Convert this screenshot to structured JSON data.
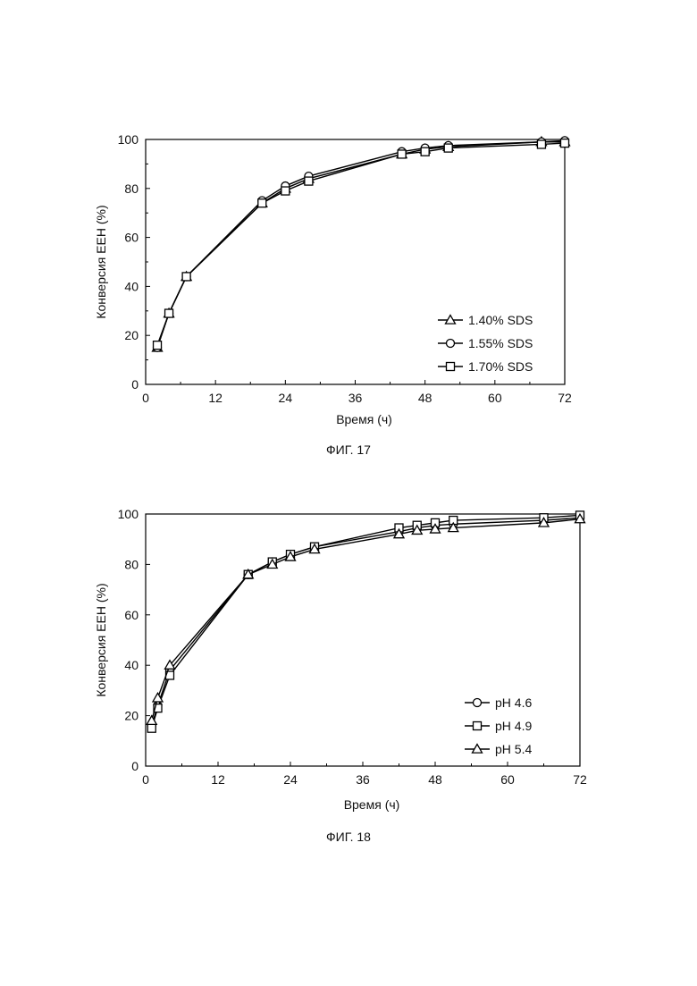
{
  "charts": [
    {
      "id": "fig17",
      "caption": "ФИГ. 17",
      "chart_data": {
        "type": "line",
        "xlabel": "Время (ч)",
        "ylabel": "Конверсия ЕЕН (%)",
        "xlim": [
          0,
          72
        ],
        "ylim": [
          0,
          100
        ],
        "xticks": [
          0,
          12,
          24,
          36,
          48,
          60,
          72
        ],
        "yticks": [
          0,
          20,
          40,
          60,
          80,
          100
        ],
        "grid": false,
        "legend_position": "bottom-right",
        "series": [
          {
            "name": "1.40% SDS",
            "marker": "triangle",
            "x": [
              2,
              4,
              7,
              20,
              24,
              28,
              44,
              48,
              52,
              68,
              72
            ],
            "y": [
              15,
              29,
              44,
              74,
              80,
              84,
              94,
              96,
              97,
              99,
              99
            ]
          },
          {
            "name": "1.55% SDS",
            "marker": "circle",
            "x": [
              2,
              4,
              7,
              20,
              24,
              28,
              44,
              48,
              52,
              68,
              72
            ],
            "y": [
              15,
              29,
              44,
              75,
              81,
              85,
              95,
              96.5,
              97.5,
              99,
              99.5
            ]
          },
          {
            "name": "1.70% SDS",
            "marker": "square",
            "x": [
              2,
              4,
              7,
              20,
              24,
              28,
              44,
              48,
              52,
              68,
              72
            ],
            "y": [
              16,
              29,
              44,
              74,
              79,
              83,
              94,
              95,
              96.5,
              98,
              98.5
            ]
          }
        ]
      }
    },
    {
      "id": "fig18",
      "caption": "ФИГ. 18",
      "chart_data": {
        "type": "line",
        "xlabel": "Время (ч)",
        "ylabel": "Конверсия ЕЕН (%)",
        "xlim": [
          0,
          72
        ],
        "ylim": [
          0,
          100
        ],
        "xticks": [
          0,
          12,
          24,
          36,
          48,
          60,
          72
        ],
        "yticks": [
          0,
          20,
          40,
          60,
          80,
          100
        ],
        "grid": false,
        "legend_position": "bottom-right",
        "series": [
          {
            "name": "pH 4.6",
            "marker": "circle",
            "x": [
              1,
              2,
              4,
              17,
              21,
              24,
              28,
              42,
              45,
              48,
              51,
              66,
              72
            ],
            "y": [
              16,
              24,
              38,
              76,
              81,
              84,
              87,
              93,
              94.5,
              95.5,
              96,
              97.5,
              98.5
            ]
          },
          {
            "name": "pH 4.9",
            "marker": "square",
            "x": [
              1,
              2,
              4,
              17,
              21,
              24,
              28,
              42,
              45,
              48,
              51,
              66,
              72
            ],
            "y": [
              15,
              23,
              36,
              76,
              81,
              84,
              87,
              94.5,
              95.5,
              96.5,
              97.5,
              98.5,
              99.5
            ]
          },
          {
            "name": "pH 5.4",
            "marker": "triangle",
            "x": [
              1,
              2,
              4,
              17,
              21,
              24,
              28,
              42,
              45,
              48,
              51,
              66,
              72
            ],
            "y": [
              18,
              27,
              40,
              76,
              80,
              83,
              86,
              92,
              93.5,
              94,
              94.5,
              96.5,
              98
            ]
          }
        ]
      }
    }
  ]
}
